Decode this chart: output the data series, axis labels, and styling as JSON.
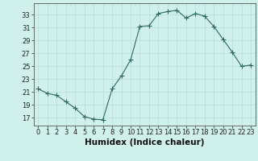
{
  "x": [
    0,
    1,
    2,
    3,
    4,
    5,
    6,
    7,
    8,
    9,
    10,
    11,
    12,
    13,
    14,
    15,
    16,
    17,
    18,
    19,
    20,
    21,
    22,
    23
  ],
  "y": [
    21.5,
    20.8,
    20.5,
    19.5,
    18.5,
    17.2,
    16.8,
    16.7,
    21.5,
    23.5,
    26.0,
    31.2,
    31.3,
    33.2,
    33.5,
    33.7,
    32.5,
    33.2,
    32.8,
    31.2,
    29.2,
    27.2,
    25.0,
    25.2
  ],
  "line_color": "#2e6b5e",
  "marker": "D",
  "marker_size": 2.2,
  "bg_color": "#cff0eb",
  "grid_color": "#b8ddd8",
  "xlabel": "Humidex (Indice chaleur)",
  "xlabel_fontsize": 7.5,
  "ytick_values": [
    17,
    19,
    21,
    23,
    25,
    27,
    29,
    31,
    33
  ],
  "ylim": [
    15.8,
    34.8
  ],
  "xlim": [
    -0.5,
    23.5
  ],
  "tick_fontsize": 6.0
}
